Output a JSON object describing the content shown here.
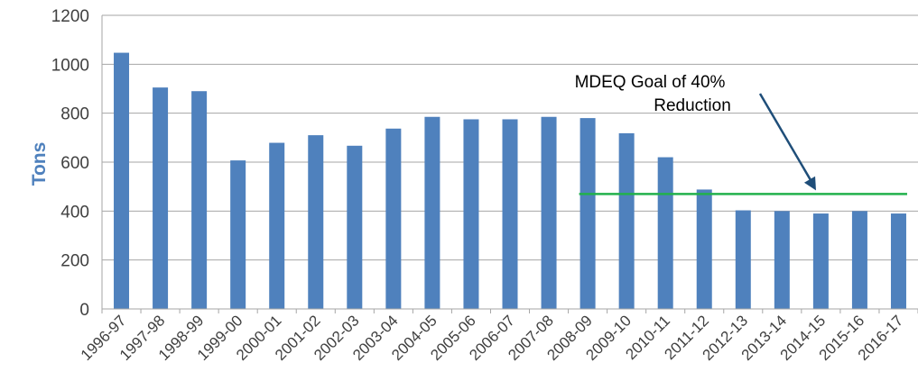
{
  "colors": {
    "bar": "#4f81bd",
    "grid": "#a6a6a6",
    "goal_line": "#22b14c",
    "arrow": "#1f4e79",
    "axis_title": "#4f81bd"
  },
  "chart_data": {
    "type": "bar",
    "title": "",
    "xlabel": "",
    "ylabel": "Tons",
    "ylim": [
      0,
      1200
    ],
    "yticks": [
      0,
      200,
      400,
      600,
      800,
      1000,
      1200
    ],
    "grid": true,
    "categories": [
      "1996-97",
      "1997-98",
      "1998-99",
      "1999-00",
      "2000-01",
      "2001-02",
      "2002-03",
      "2003-04",
      "2004-05",
      "2005-06",
      "2006-07",
      "2007-08",
      "2008-09",
      "2009-10",
      "2010-11",
      "2011-12",
      "2012-13",
      "2013-14",
      "2014-15",
      "2015-16",
      "2016-17"
    ],
    "values": [
      1047,
      905,
      890,
      607,
      679,
      710,
      667,
      737,
      785,
      775,
      775,
      785,
      780,
      718,
      620,
      488,
      403,
      400,
      390,
      400,
      390
    ],
    "goal": {
      "value": 470,
      "start_category": "2008-09",
      "end_category": "2016-17"
    },
    "annotation": {
      "line1": "MDEQ Goal of 40%",
      "line2": "Reduction"
    }
  }
}
